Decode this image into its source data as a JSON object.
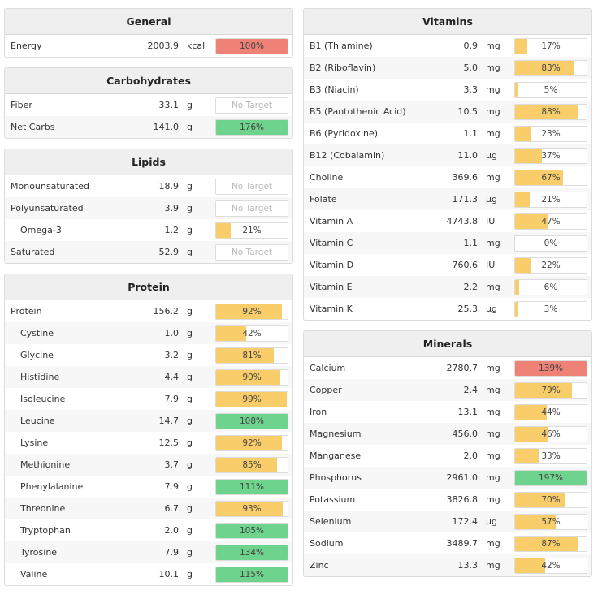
{
  "left_panels": [
    {
      "title": "General",
      "rows": [
        {
          "name": "Energy",
          "amount": "2003.9",
          "unit": "kcal",
          "pct": 100,
          "label": "100%",
          "color": "red"
        }
      ]
    },
    {
      "title": "Carbohydrates",
      "rows": [
        {
          "name": "Fiber",
          "amount": "33.1",
          "unit": "g",
          "pct": 0,
          "label": "No Target",
          "color": "none"
        },
        {
          "name": "Net Carbs",
          "amount": "141.0",
          "unit": "g",
          "pct": 100,
          "label": "176%",
          "color": "green"
        }
      ]
    },
    {
      "title": "Lipids",
      "rows": [
        {
          "name": "Monounsaturated",
          "amount": "18.9",
          "unit": "g",
          "pct": 0,
          "label": "No Target",
          "color": "none"
        },
        {
          "name": "Polyunsaturated",
          "amount": "3.9",
          "unit": "g",
          "pct": 0,
          "label": "No Target",
          "color": "none"
        },
        {
          "name": "Omega-3",
          "amount": "1.2",
          "unit": "g",
          "pct": 21,
          "label": "21%",
          "color": "yellow",
          "indent": true
        },
        {
          "name": "Saturated",
          "amount": "52.9",
          "unit": "g",
          "pct": 0,
          "label": "No Target",
          "color": "none"
        }
      ]
    },
    {
      "title": "Protein",
      "rows": [
        {
          "name": "Protein",
          "amount": "156.2",
          "unit": "g",
          "pct": 92,
          "label": "92%",
          "color": "yellow"
        },
        {
          "name": "Cystine",
          "amount": "1.0",
          "unit": "g",
          "pct": 42,
          "label": "42%",
          "color": "yellow",
          "indent": true
        },
        {
          "name": "Glycine",
          "amount": "3.2",
          "unit": "g",
          "pct": 81,
          "label": "81%",
          "color": "yellow",
          "indent": true
        },
        {
          "name": "Histidine",
          "amount": "4.4",
          "unit": "g",
          "pct": 90,
          "label": "90%",
          "color": "yellow",
          "indent": true
        },
        {
          "name": "Isoleucine",
          "amount": "7.9",
          "unit": "g",
          "pct": 99,
          "label": "99%",
          "color": "yellow",
          "indent": true
        },
        {
          "name": "Leucine",
          "amount": "14.7",
          "unit": "g",
          "pct": 100,
          "label": "108%",
          "color": "green",
          "indent": true
        },
        {
          "name": "Lysine",
          "amount": "12.5",
          "unit": "g",
          "pct": 92,
          "label": "92%",
          "color": "yellow",
          "indent": true
        },
        {
          "name": "Methionine",
          "amount": "3.7",
          "unit": "g",
          "pct": 85,
          "label": "85%",
          "color": "yellow",
          "indent": true
        },
        {
          "name": "Phenylalanine",
          "amount": "7.9",
          "unit": "g",
          "pct": 100,
          "label": "111%",
          "color": "green",
          "indent": true
        },
        {
          "name": "Threonine",
          "amount": "6.7",
          "unit": "g",
          "pct": 93,
          "label": "93%",
          "color": "yellow",
          "indent": true
        },
        {
          "name": "Tryptophan",
          "amount": "2.0",
          "unit": "g",
          "pct": 100,
          "label": "105%",
          "color": "green",
          "indent": true
        },
        {
          "name": "Tyrosine",
          "amount": "7.9",
          "unit": "g",
          "pct": 100,
          "label": "134%",
          "color": "green",
          "indent": true
        },
        {
          "name": "Valine",
          "amount": "10.1",
          "unit": "g",
          "pct": 100,
          "label": "115%",
          "color": "green",
          "indent": true
        }
      ]
    }
  ],
  "right_panels": [
    {
      "title": "Vitamins",
      "rows": [
        {
          "name": "B1 (Thiamine)",
          "amount": "0.9",
          "unit": "mg",
          "pct": 17,
          "label": "17%",
          "color": "yellow"
        },
        {
          "name": "B2 (Riboflavin)",
          "amount": "5.0",
          "unit": "mg",
          "pct": 83,
          "label": "83%",
          "color": "yellow"
        },
        {
          "name": "B3 (Niacin)",
          "amount": "3.3",
          "unit": "mg",
          "pct": 5,
          "label": "5%",
          "color": "yellow"
        },
        {
          "name": "B5 (Pantothenic Acid)",
          "amount": "10.5",
          "unit": "mg",
          "pct": 88,
          "label": "88%",
          "color": "yellow"
        },
        {
          "name": "B6 (Pyridoxine)",
          "amount": "1.1",
          "unit": "mg",
          "pct": 23,
          "label": "23%",
          "color": "yellow"
        },
        {
          "name": "B12 (Cobalamin)",
          "amount": "11.0",
          "unit": "µg",
          "pct": 37,
          "label": "37%",
          "color": "yellow"
        },
        {
          "name": "Choline",
          "amount": "369.6",
          "unit": "mg",
          "pct": 67,
          "label": "67%",
          "color": "yellow"
        },
        {
          "name": "Folate",
          "amount": "171.3",
          "unit": "µg",
          "pct": 21,
          "label": "21%",
          "color": "yellow"
        },
        {
          "name": "Vitamin A",
          "amount": "4743.8",
          "unit": "IU",
          "pct": 47,
          "label": "47%",
          "color": "yellow"
        },
        {
          "name": "Vitamin C",
          "amount": "1.1",
          "unit": "mg",
          "pct": 0,
          "label": "0%",
          "color": "yellow"
        },
        {
          "name": "Vitamin D",
          "amount": "760.6",
          "unit": "IU",
          "pct": 22,
          "label": "22%",
          "color": "yellow"
        },
        {
          "name": "Vitamin E",
          "amount": "2.2",
          "unit": "mg",
          "pct": 6,
          "label": "6%",
          "color": "yellow"
        },
        {
          "name": "Vitamin K",
          "amount": "25.3",
          "unit": "µg",
          "pct": 3,
          "label": "3%",
          "color": "yellow"
        }
      ]
    },
    {
      "title": "Minerals",
      "rows": [
        {
          "name": "Calcium",
          "amount": "2780.7",
          "unit": "mg",
          "pct": 100,
          "label": "139%",
          "color": "red"
        },
        {
          "name": "Copper",
          "amount": "2.4",
          "unit": "mg",
          "pct": 79,
          "label": "79%",
          "color": "yellow"
        },
        {
          "name": "Iron",
          "amount": "13.1",
          "unit": "mg",
          "pct": 44,
          "label": "44%",
          "color": "yellow"
        },
        {
          "name": "Magnesium",
          "amount": "456.0",
          "unit": "mg",
          "pct": 46,
          "label": "46%",
          "color": "yellow"
        },
        {
          "name": "Manganese",
          "amount": "2.0",
          "unit": "mg",
          "pct": 33,
          "label": "33%",
          "color": "yellow"
        },
        {
          "name": "Phosphorus",
          "amount": "2961.0",
          "unit": "mg",
          "pct": 100,
          "label": "197%",
          "color": "green"
        },
        {
          "name": "Potassium",
          "amount": "3826.8",
          "unit": "mg",
          "pct": 70,
          "label": "70%",
          "color": "yellow"
        },
        {
          "name": "Selenium",
          "amount": "172.4",
          "unit": "µg",
          "pct": 57,
          "label": "57%",
          "color": "yellow"
        },
        {
          "name": "Sodium",
          "amount": "3489.7",
          "unit": "mg",
          "pct": 87,
          "label": "87%",
          "color": "yellow"
        },
        {
          "name": "Zinc",
          "amount": "13.3",
          "unit": "mg",
          "pct": 42,
          "label": "42%",
          "color": "yellow"
        }
      ]
    }
  ],
  "colors": {
    "yellow": "#f9ce6a",
    "green": "#6ed38d",
    "red": "#ef8276",
    "header_bg": "#efefef",
    "alt_row": "#f7f7f7"
  }
}
